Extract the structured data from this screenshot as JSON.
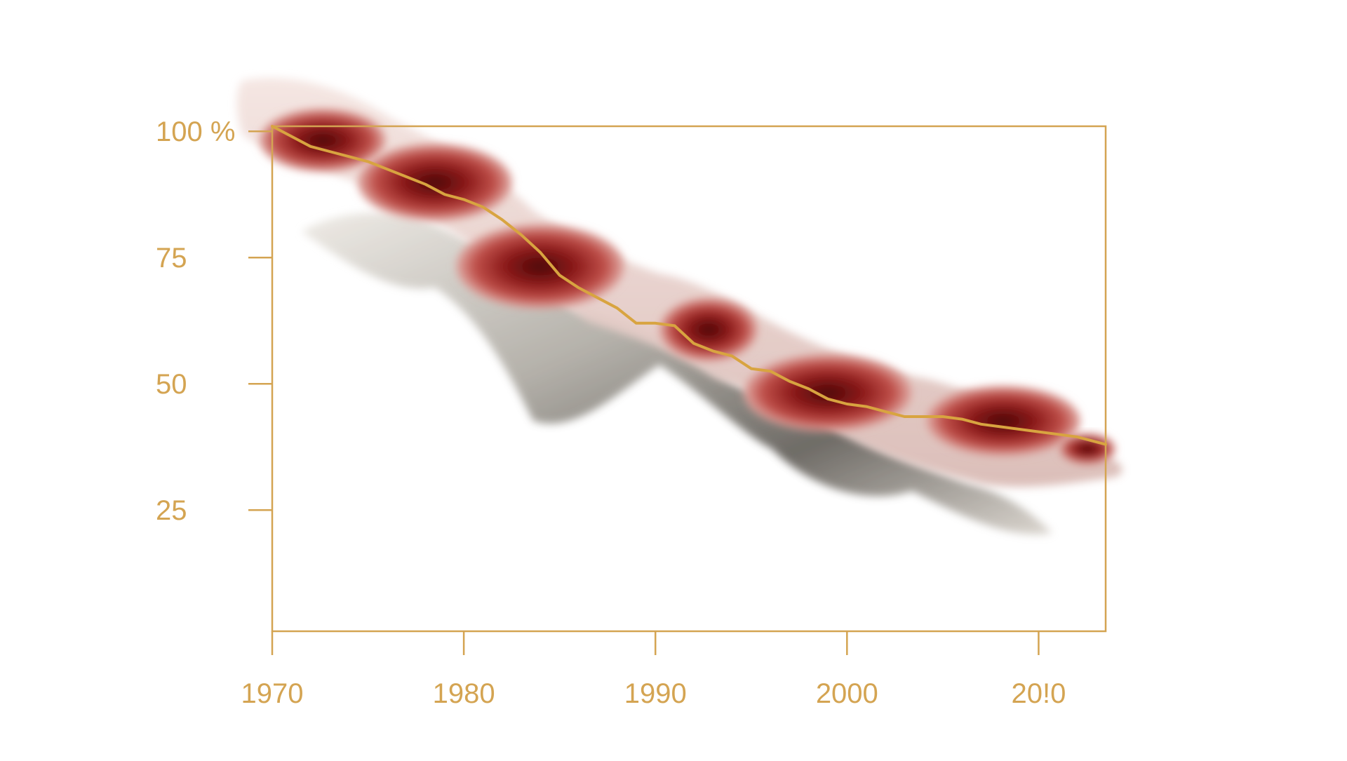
{
  "chart_data": {
    "type": "line",
    "title": "",
    "xlabel": "",
    "ylabel": "",
    "x_ticks": [
      "1970",
      "1980",
      "1990",
      "2000",
      "20!0"
    ],
    "x_tick_values": [
      1970,
      1980,
      1990,
      2000,
      2010
    ],
    "y_ticks": [
      "100 %",
      "75",
      "50",
      "25"
    ],
    "y_tick_values": [
      100,
      75,
      50,
      25
    ],
    "xlim": [
      1970,
      2013.5
    ],
    "ylim": [
      1,
      101
    ],
    "grid": false,
    "legend": "none",
    "colors": {
      "axis": "#d4a452",
      "line": "#d8a440",
      "blob_dark": "#5c0c0c",
      "blob_mid": "#a82828",
      "blob_light": "#f0d8d2",
      "blob_silver": "#a09c96"
    },
    "series": [
      {
        "x": [
          1970,
          1971,
          1972,
          1973,
          1974,
          1975,
          1976,
          1977,
          1978,
          1979,
          1980,
          1981,
          1982,
          1983,
          1984,
          1985,
          1986,
          1987,
          1988,
          1989,
          1990,
          1991,
          1992,
          1993,
          1994,
          1995,
          1996,
          1997,
          1998,
          1999,
          2000,
          2001,
          2002,
          2003,
          2004,
          2005,
          2006,
          2007,
          2008,
          2009,
          2010,
          2011,
          2012,
          2013.5
        ],
        "values": [
          101,
          99,
          97,
          96,
          95,
          94,
          92.5,
          91,
          89.5,
          87.5,
          86.5,
          85,
          82.5,
          79.5,
          76,
          71.5,
          69,
          67,
          65,
          62,
          62,
          61.5,
          58,
          56.5,
          55.5,
          53,
          52.5,
          50.5,
          49,
          47,
          46,
          45.5,
          44.5,
          43.5,
          43.5,
          43.5,
          43,
          42,
          41.5,
          41,
          40.5,
          40,
          39.5,
          38
        ]
      }
    ]
  }
}
